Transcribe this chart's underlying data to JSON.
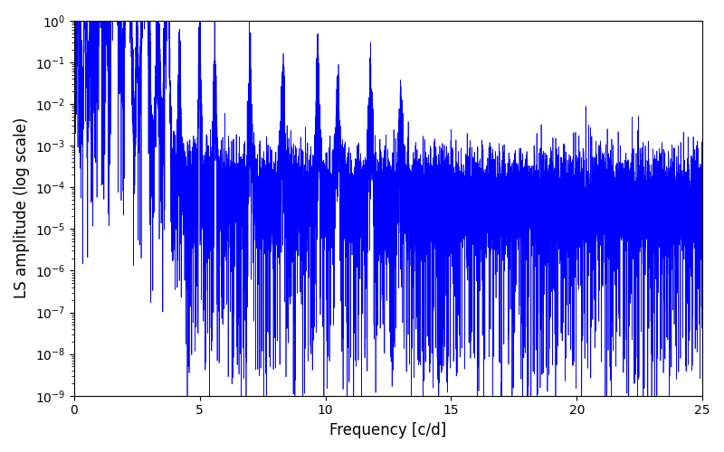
{
  "xlabel": "Frequency [c/d]",
  "ylabel": "LS amplitude (log scale)",
  "line_color": "#0000ff",
  "line_width": 0.5,
  "xlim": [
    0,
    25
  ],
  "ylim_log": [
    -9,
    0
  ],
  "yscale": "log",
  "freq_min": 0.0,
  "freq_max": 25.0,
  "n_points": 15000,
  "seed": 12345,
  "background_color": "#ffffff",
  "figsize": [
    8.0,
    5.0
  ],
  "dpi": 100
}
